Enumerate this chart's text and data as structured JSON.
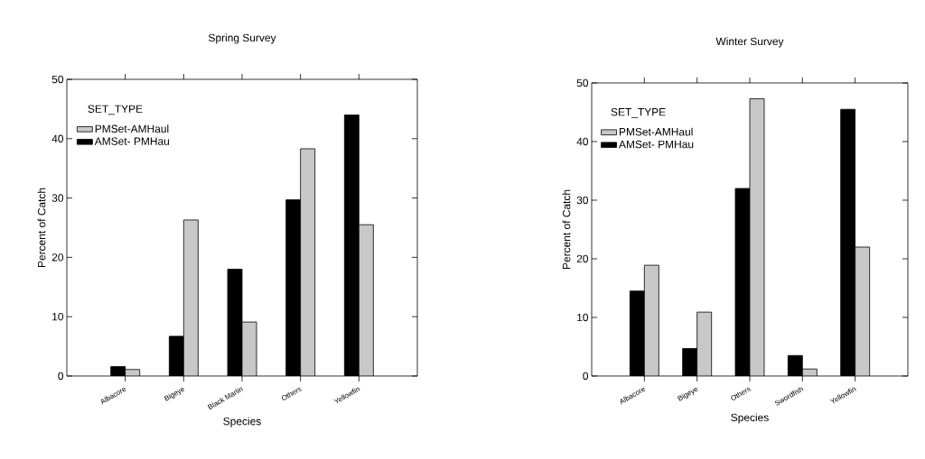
{
  "chart_data": [
    {
      "type": "bar",
      "title": "Spring Survey",
      "xlabel": "Species",
      "ylabel": "Percent of Catch",
      "legend_title": "SET_TYPE",
      "legend": "top left",
      "categories": [
        "Albacore",
        "Bigeye",
        "Black Marlin",
        "Others",
        "Yellowfin"
      ],
      "series": [
        {
          "name": "AMSet- PMHau",
          "color": "#000000",
          "values": [
            1.6,
            6.7,
            18,
            29.7,
            44
          ]
        },
        {
          "name": "PMSet-AMHaul",
          "color": "#c8c8c8",
          "values": [
            1.1,
            26.3,
            9.1,
            38.3,
            25.5
          ]
        }
      ],
      "ylim": [
        0,
        50
      ],
      "yticks": [
        0,
        10,
        20,
        30,
        40,
        50
      ]
    },
    {
      "type": "bar",
      "title": "Winter Survey",
      "xlabel": "Species",
      "ylabel": "Percent of Catch",
      "legend_title": "SET_TYPE",
      "legend": "top left",
      "categories": [
        "Albacore",
        "Bigeye",
        "Others",
        "Swordfish",
        "Yellowfin"
      ],
      "series": [
        {
          "name": "AMSet- PMHau",
          "color": "#000000",
          "values": [
            14.5,
            4.7,
            32,
            3.5,
            45.5
          ]
        },
        {
          "name": "PMSet-AMHaul",
          "color": "#c8c8c8",
          "values": [
            18.9,
            10.9,
            47.3,
            1.2,
            22
          ]
        }
      ],
      "ylim": [
        0,
        50
      ],
      "yticks": [
        0,
        10,
        20,
        30,
        40,
        50
      ]
    }
  ]
}
